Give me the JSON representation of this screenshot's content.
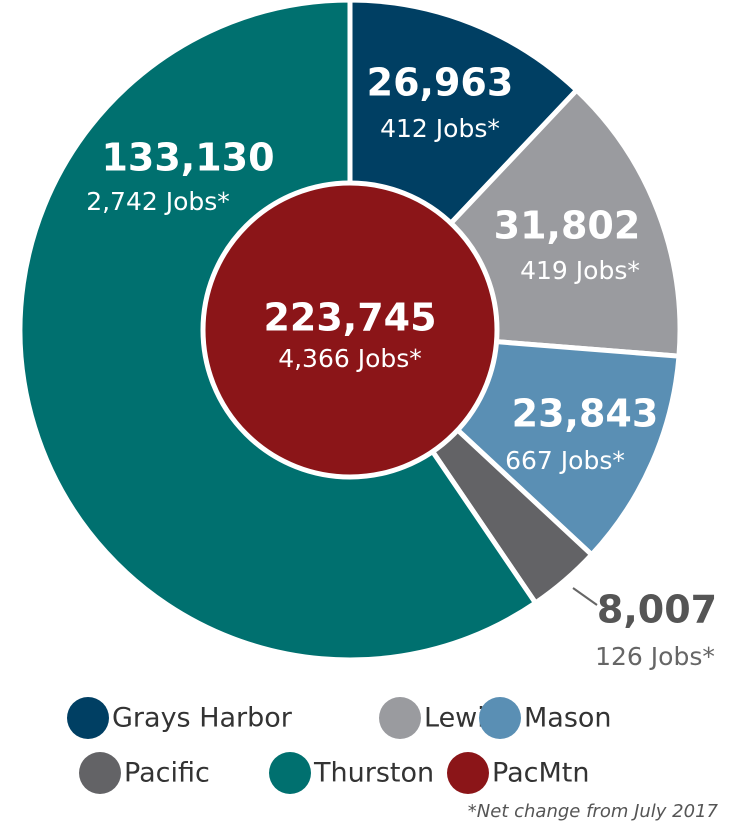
{
  "chart_data": {
    "type": "pie",
    "categories": [
      "Grays Harbor",
      "Lewis",
      "Mason",
      "Pacific",
      "Thurston"
    ],
    "values": [
      26963,
      31802,
      23843,
      8007,
      133130
    ],
    "value_labels": [
      "26,963",
      "31,802",
      "23,843",
      "8,007",
      "133,130"
    ],
    "job_labels": [
      "412 Jobs*",
      "419 Jobs*",
      "667 Jobs*",
      "126 Jobs*",
      "2,742 Jobs*"
    ],
    "colors": [
      "#003f63",
      "#9a9b9f",
      "#5a8fb4",
      "#636366",
      "#00706f"
    ],
    "center": {
      "name": "PacMtn",
      "color": "#8b1518",
      "value": 223745,
      "value_label": "223,745",
      "job_label": "4,366 Jobs*"
    },
    "footnote": "*Net change from July 2017"
  }
}
